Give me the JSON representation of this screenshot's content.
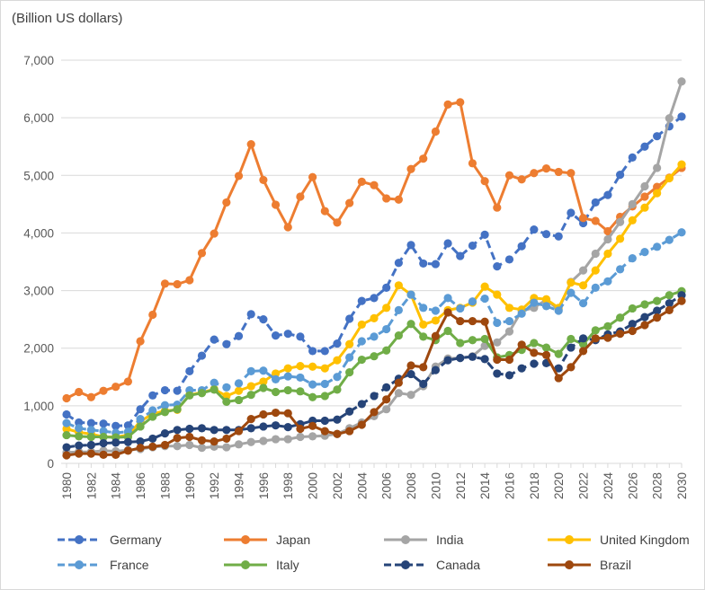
{
  "chart_data": {
    "type": "line",
    "title": "",
    "unit_label": "(Billion US dollars)",
    "xlabel": "",
    "ylabel": "",
    "ylim": [
      0,
      7000
    ],
    "yticks": [
      0,
      1000,
      2000,
      3000,
      4000,
      5000,
      6000,
      7000
    ],
    "ytick_labels": [
      "0",
      "1,000",
      "2,000",
      "3,000",
      "4,000",
      "5,000",
      "6,000",
      "7,000"
    ],
    "x": [
      1980,
      1981,
      1982,
      1983,
      1984,
      1985,
      1986,
      1987,
      1988,
      1989,
      1990,
      1991,
      1992,
      1993,
      1994,
      1995,
      1996,
      1997,
      1998,
      1999,
      2000,
      2001,
      2002,
      2003,
      2004,
      2005,
      2006,
      2007,
      2008,
      2009,
      2010,
      2011,
      2012,
      2013,
      2014,
      2015,
      2016,
      2017,
      2018,
      2019,
      2020,
      2021,
      2022,
      2023,
      2024,
      2025,
      2026,
      2027,
      2028,
      2029,
      2030
    ],
    "xtick_labels": [
      "1980",
      "1982",
      "1984",
      "1986",
      "1988",
      "1990",
      "1992",
      "1994",
      "1996",
      "1998",
      "2000",
      "2002",
      "2004",
      "2006",
      "2008",
      "2010",
      "2012",
      "2014",
      "2016",
      "2018",
      "2020",
      "2022",
      "2024",
      "2026",
      "2028",
      "2030"
    ],
    "grid": "horizontal",
    "legend_position": "bottom",
    "forecast_start": 2023,
    "series": [
      {
        "name": "Germany",
        "color": "#4472c4",
        "style": "dashed",
        "values": [
          850,
          710,
          700,
          690,
          650,
          660,
          940,
          1180,
          1270,
          1260,
          1600,
          1870,
          2150,
          2070,
          2210,
          2590,
          2500,
          2220,
          2250,
          2200,
          1950,
          1950,
          2080,
          2510,
          2820,
          2870,
          3050,
          3480,
          3790,
          3470,
          3460,
          3820,
          3600,
          3780,
          3970,
          3420,
          3540,
          3770,
          4060,
          3980,
          3940,
          4350,
          4170,
          4530,
          4660,
          5010,
          5310,
          5500,
          5680,
          5850,
          6020
        ]
      },
      {
        "name": "Japan",
        "color": "#ed7d31",
        "style": "solid",
        "values": [
          1130,
          1240,
          1150,
          1260,
          1330,
          1420,
          2120,
          2580,
          3120,
          3110,
          3180,
          3650,
          3990,
          4530,
          4990,
          5540,
          4920,
          4490,
          4100,
          4630,
          4970,
          4380,
          4180,
          4520,
          4890,
          4830,
          4600,
          4580,
          5110,
          5290,
          5760,
          6230,
          6270,
          5210,
          4900,
          4440,
          5000,
          4930,
          5040,
          5120,
          5060,
          5040,
          4260,
          4210,
          4030,
          4280,
          4460,
          4630,
          4800,
          4960,
          5130
        ]
      },
      {
        "name": "India",
        "color": "#a5a5a5",
        "style": "solid",
        "values": [
          190,
          200,
          200,
          220,
          210,
          230,
          250,
          280,
          300,
          300,
          320,
          270,
          290,
          280,
          330,
          370,
          390,
          420,
          420,
          460,
          470,
          480,
          510,
          610,
          710,
          820,
          940,
          1220,
          1190,
          1340,
          1680,
          1820,
          1830,
          1860,
          2040,
          2100,
          2290,
          2650,
          2700,
          2840,
          2670,
          3150,
          3350,
          3640,
          3890,
          4190,
          4500,
          4810,
          5130,
          5990,
          6630
        ]
      },
      {
        "name": "United Kingdom",
        "color": "#ffc000",
        "style": "solid",
        "values": [
          600,
          540,
          510,
          460,
          460,
          490,
          730,
          860,
          910,
          930,
          1190,
          1230,
          1290,
          1170,
          1260,
          1340,
          1420,
          1560,
          1650,
          1690,
          1680,
          1650,
          1790,
          2070,
          2410,
          2520,
          2700,
          3090,
          2930,
          2410,
          2480,
          2660,
          2700,
          2790,
          3070,
          2930,
          2700,
          2670,
          2870,
          2850,
          2700,
          3140,
          3090,
          3350,
          3640,
          3900,
          4220,
          4440,
          4690,
          4950,
          5190
        ]
      },
      {
        "name": "France",
        "color": "#5b9bd5",
        "style": "dashed",
        "values": [
          700,
          610,
          580,
          560,
          530,
          550,
          770,
          920,
          1010,
          1020,
          1270,
          1270,
          1400,
          1320,
          1390,
          1600,
          1610,
          1460,
          1510,
          1490,
          1370,
          1380,
          1500,
          1840,
          2120,
          2200,
          2330,
          2660,
          2930,
          2700,
          2650,
          2870,
          2690,
          2810,
          2860,
          2440,
          2470,
          2600,
          2790,
          2730,
          2650,
          2960,
          2780,
          3050,
          3160,
          3370,
          3560,
          3670,
          3760,
          3880,
          4010
        ]
      },
      {
        "name": "Italy",
        "color": "#70ad47",
        "style": "solid",
        "values": [
          490,
          470,
          460,
          460,
          450,
          460,
          640,
          810,
          890,
          940,
          1180,
          1220,
          1280,
          1070,
          1100,
          1190,
          1310,
          1240,
          1270,
          1250,
          1150,
          1170,
          1280,
          1580,
          1800,
          1860,
          1960,
          2220,
          2420,
          2200,
          2140,
          2300,
          2090,
          2140,
          2160,
          1840,
          1880,
          1970,
          2090,
          2010,
          1900,
          2160,
          2070,
          2310,
          2380,
          2530,
          2690,
          2760,
          2820,
          2920,
          2990
        ]
      },
      {
        "name": "Canada",
        "color": "#264478",
        "style": "dashed",
        "values": [
          280,
          310,
          320,
          350,
          360,
          370,
          380,
          430,
          520,
          580,
          600,
          610,
          580,
          580,
          580,
          610,
          640,
          660,
          630,
          680,
          740,
          740,
          760,
          900,
          1030,
          1170,
          1320,
          1470,
          1550,
          1380,
          1620,
          1790,
          1830,
          1850,
          1810,
          1560,
          1530,
          1650,
          1730,
          1740,
          1650,
          2010,
          2170,
          2140,
          2240,
          2290,
          2420,
          2540,
          2650,
          2780,
          2920
        ]
      },
      {
        "name": "Brazil",
        "color": "#9e480e",
        "style": "solid",
        "values": [
          140,
          170,
          170,
          150,
          150,
          220,
          270,
          290,
          320,
          440,
          460,
          400,
          380,
          430,
          560,
          770,
          850,
          880,
          870,
          600,
          650,
          560,
          510,
          560,
          670,
          890,
          1110,
          1400,
          1700,
          1670,
          2210,
          2620,
          2470,
          2470,
          2460,
          1800,
          1800,
          2060,
          1920,
          1880,
          1480,
          1670,
          1950,
          2170,
          2180,
          2250,
          2300,
          2400,
          2530,
          2660,
          2820
        ]
      }
    ]
  }
}
